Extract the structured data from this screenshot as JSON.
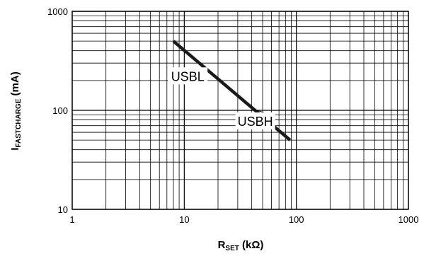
{
  "chart_data": {
    "type": "line",
    "x_scale": "log",
    "y_scale": "log",
    "xlim": [
      1,
      1000
    ],
    "ylim": [
      10,
      1000
    ],
    "grid": true,
    "x_ticks": [
      "1",
      "10",
      "100",
      "1000"
    ],
    "y_ticks": [
      "10",
      "100",
      "1000"
    ],
    "xlabel": {
      "main": "R",
      "sub": "SET",
      "unit": " (kΩ)"
    },
    "ylabel": {
      "main": "I",
      "sub": "FASTCHARGE",
      "unit": " (mA)"
    },
    "series": [
      {
        "x": [
          8,
          88
        ],
        "y": [
          500,
          50
        ],
        "color": "#1a1a1a"
      }
    ],
    "annotations": [
      {
        "text": "USBL",
        "x": 15,
        "y": 290
      },
      {
        "text": "USBH",
        "x": 43,
        "y": 100
      }
    ]
  }
}
